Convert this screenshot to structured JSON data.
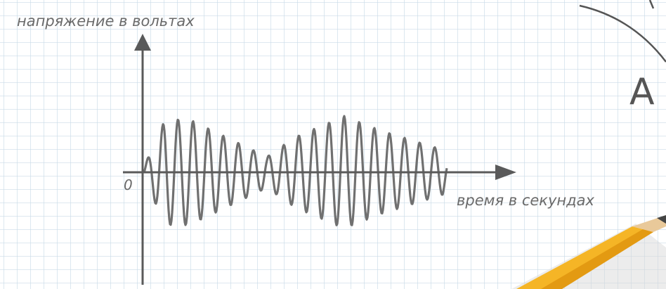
{
  "axis_labels": {
    "y": "напряжение в вольтах",
    "x": "время в секундах",
    "origin": "0"
  },
  "corner_letter": "A"
}
